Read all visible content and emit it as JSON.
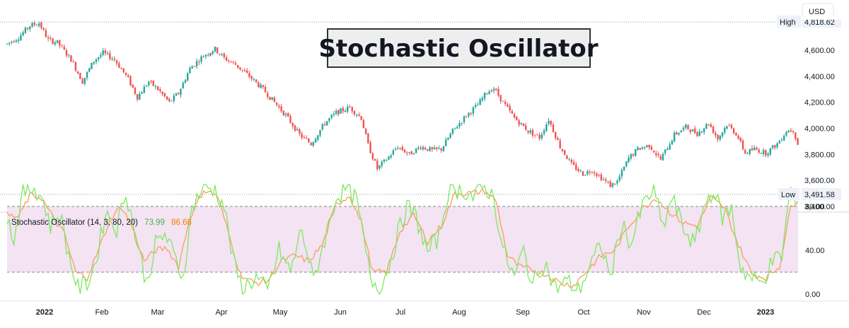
{
  "title": "Stochastic Oscillator",
  "currency": "USD",
  "high": {
    "label": "High",
    "value": "4,818.62"
  },
  "low": {
    "label": "Low",
    "value": "3,491.58"
  },
  "indicator": {
    "label": "Stochastic Oscillator (14, 3, 80, 20)",
    "k_value": "73.99",
    "d_value": "86.68"
  },
  "colors": {
    "up": "#26a69a",
    "down": "#ef5350",
    "k_line": "#7ee85f",
    "d_line": "#f5a05a",
    "band": "#f3e3f3",
    "grid": "#9e9e9e"
  },
  "chart_data": [
    {
      "type": "candlestick",
      "price_ticks": [
        "4,600.00",
        "4,400.00",
        "4,200.00",
        "4,000.00",
        "3,800.00",
        "3,600.00",
        "3,400.00"
      ],
      "price_tick_values": [
        4600,
        4400,
        4200,
        4000,
        3800,
        3600,
        3400
      ],
      "ylim": [
        3380,
        4860
      ],
      "x_labels": [
        "2022",
        "Feb",
        "Mar",
        "Apr",
        "May",
        "Jun",
        "Jul",
        "Aug",
        "Sep",
        "Oct",
        "Nov",
        "Dec",
        "2023"
      ],
      "anchors": [
        [
          0,
          4650
        ],
        [
          5,
          4700
        ],
        [
          10,
          4790
        ],
        [
          14,
          4810
        ],
        [
          18,
          4680
        ],
        [
          22,
          4660
        ],
        [
          28,
          4530
        ],
        [
          33,
          4360
        ],
        [
          38,
          4520
        ],
        [
          42,
          4580
        ],
        [
          47,
          4530
        ],
        [
          53,
          4380
        ],
        [
          57,
          4240
        ],
        [
          62,
          4360
        ],
        [
          66,
          4300
        ],
        [
          71,
          4200
        ],
        [
          75,
          4270
        ],
        [
          80,
          4460
        ],
        [
          86,
          4560
        ],
        [
          91,
          4610
        ],
        [
          95,
          4540
        ],
        [
          100,
          4490
        ],
        [
          106,
          4400
        ],
        [
          112,
          4300
        ],
        [
          117,
          4200
        ],
        [
          122,
          4100
        ],
        [
          128,
          3950
        ],
        [
          133,
          3880
        ],
        [
          139,
          4040
        ],
        [
          144,
          4120
        ],
        [
          150,
          4160
        ],
        [
          155,
          4080
        ],
        [
          158,
          3870
        ],
        [
          162,
          3690
        ],
        [
          166,
          3760
        ],
        [
          171,
          3860
        ],
        [
          176,
          3800
        ],
        [
          181,
          3860
        ],
        [
          186,
          3830
        ],
        [
          190,
          3840
        ],
        [
          195,
          3980
        ],
        [
          201,
          4100
        ],
        [
          206,
          4180
        ],
        [
          210,
          4280
        ],
        [
          213,
          4310
        ],
        [
          217,
          4200
        ],
        [
          222,
          4080
        ],
        [
          228,
          3980
        ],
        [
          233,
          3930
        ],
        [
          237,
          4070
        ],
        [
          242,
          3860
        ],
        [
          247,
          3720
        ],
        [
          252,
          3650
        ],
        [
          256,
          3680
        ],
        [
          260,
          3620
        ],
        [
          264,
          3560
        ],
        [
          267,
          3590
        ],
        [
          272,
          3770
        ],
        [
          276,
          3840
        ],
        [
          281,
          3870
        ],
        [
          286,
          3760
        ],
        [
          292,
          3950
        ],
        [
          297,
          4010
        ],
        [
          302,
          3960
        ],
        [
          307,
          4040
        ],
        [
          311,
          3920
        ],
        [
          315,
          4030
        ],
        [
          319,
          3960
        ],
        [
          323,
          3810
        ],
        [
          327,
          3840
        ],
        [
          332,
          3810
        ],
        [
          337,
          3880
        ],
        [
          341,
          3980
        ],
        [
          344,
          3990
        ],
        [
          346,
          3880
        ]
      ]
    },
    {
      "type": "line",
      "name": "Stochastic Oscillator (14, 3, 80, 20)",
      "y_ticks": [
        "80.00",
        "40.00",
        "0.00"
      ],
      "y_tick_values": [
        80,
        40,
        0
      ],
      "ylim": [
        -10,
        106
      ],
      "bands": [
        80,
        20
      ],
      "k_anchors": [
        [
          0,
          70
        ],
        [
          3,
          50
        ],
        [
          7,
          92
        ],
        [
          12,
          98
        ],
        [
          16,
          85
        ],
        [
          19,
          62
        ],
        [
          23,
          75
        ],
        [
          27,
          35
        ],
        [
          31,
          5
        ],
        [
          35,
          10
        ],
        [
          39,
          30
        ],
        [
          43,
          75
        ],
        [
          48,
          60
        ],
        [
          52,
          95
        ],
        [
          56,
          55
        ],
        [
          61,
          10
        ],
        [
          65,
          45
        ],
        [
          69,
          55
        ],
        [
          73,
          35
        ],
        [
          77,
          15
        ],
        [
          81,
          80
        ],
        [
          86,
          98
        ],
        [
          91,
          95
        ],
        [
          95,
          80
        ],
        [
          99,
          30
        ],
        [
          103,
          5
        ],
        [
          109,
          15
        ],
        [
          114,
          2
        ],
        [
          119,
          40
        ],
        [
          124,
          20
        ],
        [
          129,
          60
        ],
        [
          134,
          12
        ],
        [
          139,
          50
        ],
        [
          144,
          88
        ],
        [
          148,
          96
        ],
        [
          153,
          85
        ],
        [
          156,
          50
        ],
        [
          159,
          15
        ],
        [
          163,
          5
        ],
        [
          167,
          25
        ],
        [
          171,
          55
        ],
        [
          175,
          80
        ],
        [
          179,
          70
        ],
        [
          184,
          38
        ],
        [
          189,
          52
        ],
        [
          193,
          94
        ],
        [
          199,
          96
        ],
        [
          204,
          88
        ],
        [
          209,
          98
        ],
        [
          213,
          88
        ],
        [
          217,
          40
        ],
        [
          222,
          15
        ],
        [
          226,
          40
        ],
        [
          230,
          8
        ],
        [
          235,
          30
        ],
        [
          240,
          5
        ],
        [
          245,
          12
        ],
        [
          250,
          3
        ],
        [
          255,
          25
        ],
        [
          260,
          45
        ],
        [
          264,
          15
        ],
        [
          269,
          65
        ],
        [
          273,
          45
        ],
        [
          278,
          80
        ],
        [
          283,
          96
        ],
        [
          287,
          60
        ],
        [
          291,
          88
        ],
        [
          296,
          60
        ],
        [
          301,
          45
        ],
        [
          305,
          80
        ],
        [
          309,
          96
        ],
        [
          313,
          70
        ],
        [
          317,
          78
        ],
        [
          321,
          25
        ],
        [
          325,
          15
        ],
        [
          330,
          10
        ],
        [
          335,
          30
        ],
        [
          339,
          35
        ],
        [
          343,
          98
        ],
        [
          346,
          74
        ]
      ],
      "d_anchors": [
        [
          0,
          72
        ],
        [
          5,
          70
        ],
        [
          10,
          90
        ],
        [
          15,
          88
        ],
        [
          20,
          70
        ],
        [
          25,
          55
        ],
        [
          30,
          20
        ],
        [
          35,
          15
        ],
        [
          40,
          40
        ],
        [
          45,
          68
        ],
        [
          50,
          80
        ],
        [
          55,
          60
        ],
        [
          60,
          30
        ],
        [
          65,
          40
        ],
        [
          70,
          42
        ],
        [
          75,
          25
        ],
        [
          80,
          70
        ],
        [
          86,
          95
        ],
        [
          92,
          90
        ],
        [
          97,
          55
        ],
        [
          102,
          18
        ],
        [
          108,
          10
        ],
        [
          114,
          12
        ],
        [
          120,
          30
        ],
        [
          126,
          35
        ],
        [
          132,
          30
        ],
        [
          138,
          45
        ],
        [
          144,
          82
        ],
        [
          150,
          90
        ],
        [
          155,
          65
        ],
        [
          160,
          20
        ],
        [
          166,
          20
        ],
        [
          172,
          58
        ],
        [
          178,
          72
        ],
        [
          184,
          48
        ],
        [
          190,
          62
        ],
        [
          196,
          92
        ],
        [
          203,
          92
        ],
        [
          209,
          94
        ],
        [
          214,
          85
        ],
        [
          219,
          35
        ],
        [
          224,
          25
        ],
        [
          230,
          22
        ],
        [
          236,
          18
        ],
        [
          242,
          10
        ],
        [
          248,
          8
        ],
        [
          254,
          22
        ],
        [
          260,
          35
        ],
        [
          266,
          40
        ],
        [
          272,
          62
        ],
        [
          278,
          78
        ],
        [
          284,
          88
        ],
        [
          290,
          75
        ],
        [
          296,
          65
        ],
        [
          302,
          62
        ],
        [
          308,
          88
        ],
        [
          314,
          78
        ],
        [
          320,
          45
        ],
        [
          326,
          18
        ],
        [
          332,
          15
        ],
        [
          338,
          25
        ],
        [
          343,
          80
        ],
        [
          346,
          87
        ]
      ]
    }
  ]
}
